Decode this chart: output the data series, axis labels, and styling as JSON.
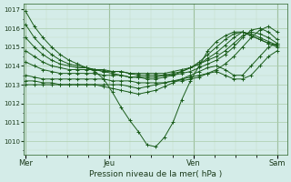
{
  "bg_color": "#d4ece8",
  "plot_bg": "#d4ece8",
  "grid_color_major": "#aaccaa",
  "grid_color_minor": "#c4ddc4",
  "line_color": "#1a5c1a",
  "xlabel": "Pression niveau de la mer( hPa )",
  "ylim": [
    1009.3,
    1017.3
  ],
  "yticks": [
    1010,
    1011,
    1012,
    1013,
    1014,
    1015,
    1016,
    1017
  ],
  "day_positions": [
    0.0,
    1.0,
    2.0,
    3.0
  ],
  "day_labels": [
    "Mer",
    "Jeu",
    "Ven",
    "Sam"
  ],
  "lines": [
    [
      1016.9,
      1016.1,
      1015.5,
      1015.0,
      1014.6,
      1014.3,
      1014.1,
      1013.9,
      1013.7,
      1013.3,
      1012.6,
      1011.8,
      1011.1,
      1010.5,
      1009.8,
      1009.7,
      1010.2,
      1011.0,
      1012.2,
      1013.2,
      1014.0,
      1014.8,
      1015.3,
      1015.6,
      1015.8,
      1015.8,
      1015.6,
      1015.4,
      1015.2,
      1015.1
    ],
    [
      1016.2,
      1015.5,
      1015.0,
      1014.6,
      1014.3,
      1014.1,
      1014.0,
      1013.9,
      1013.8,
      1013.7,
      1013.6,
      1013.5,
      1013.4,
      1013.4,
      1013.3,
      1013.3,
      1013.4,
      1013.5,
      1013.7,
      1013.9,
      1014.2,
      1014.6,
      1015.0,
      1015.4,
      1015.7,
      1015.8,
      1015.6,
      1015.4,
      1015.2,
      1015.0
    ],
    [
      1015.5,
      1015.0,
      1014.6,
      1014.3,
      1014.1,
      1014.0,
      1013.9,
      1013.9,
      1013.8,
      1013.8,
      1013.7,
      1013.7,
      1013.6,
      1013.5,
      1013.5,
      1013.5,
      1013.5,
      1013.6,
      1013.7,
      1013.9,
      1014.1,
      1014.4,
      1014.7,
      1015.1,
      1015.5,
      1015.8,
      1015.7,
      1015.5,
      1015.3,
      1015.1
    ],
    [
      1014.8,
      1014.5,
      1014.2,
      1014.0,
      1013.9,
      1013.8,
      1013.8,
      1013.8,
      1013.8,
      1013.7,
      1013.7,
      1013.7,
      1013.6,
      1013.6,
      1013.6,
      1013.6,
      1013.6,
      1013.7,
      1013.8,
      1013.9,
      1014.1,
      1014.3,
      1014.5,
      1014.8,
      1015.2,
      1015.6,
      1015.8,
      1015.7,
      1015.5,
      1015.2
    ],
    [
      1014.2,
      1014.0,
      1013.8,
      1013.7,
      1013.6,
      1013.6,
      1013.6,
      1013.6,
      1013.6,
      1013.5,
      1013.5,
      1013.5,
      1013.4,
      1013.4,
      1013.4,
      1013.4,
      1013.5,
      1013.5,
      1013.6,
      1013.7,
      1013.9,
      1014.1,
      1014.3,
      1014.6,
      1015.0,
      1015.5,
      1015.9,
      1016.0,
      1015.8,
      1015.4
    ],
    [
      1013.5,
      1013.4,
      1013.3,
      1013.3,
      1013.3,
      1013.3,
      1013.3,
      1013.3,
      1013.3,
      1013.3,
      1013.2,
      1013.2,
      1013.2,
      1013.1,
      1013.1,
      1013.1,
      1013.1,
      1013.2,
      1013.2,
      1013.3,
      1013.4,
      1013.6,
      1013.8,
      1014.1,
      1014.5,
      1015.0,
      1015.5,
      1015.9,
      1016.1,
      1015.8
    ],
    [
      1013.2,
      1013.2,
      1013.1,
      1013.1,
      1013.0,
      1013.0,
      1013.0,
      1013.0,
      1013.0,
      1012.9,
      1012.8,
      1012.7,
      1012.6,
      1012.5,
      1012.6,
      1012.7,
      1012.9,
      1013.1,
      1013.3,
      1013.5,
      1013.7,
      1013.9,
      1014.0,
      1013.8,
      1013.5,
      1013.5,
      1014.0,
      1014.5,
      1015.0,
      1015.2
    ],
    [
      1013.0,
      1013.0,
      1013.0,
      1013.0,
      1013.0,
      1013.0,
      1013.0,
      1013.0,
      1013.0,
      1013.0,
      1013.0,
      1013.0,
      1012.9,
      1012.8,
      1012.9,
      1013.0,
      1013.1,
      1013.2,
      1013.3,
      1013.4,
      1013.5,
      1013.6,
      1013.7,
      1013.5,
      1013.3,
      1013.3,
      1013.5,
      1014.0,
      1014.5,
      1014.8
    ]
  ]
}
